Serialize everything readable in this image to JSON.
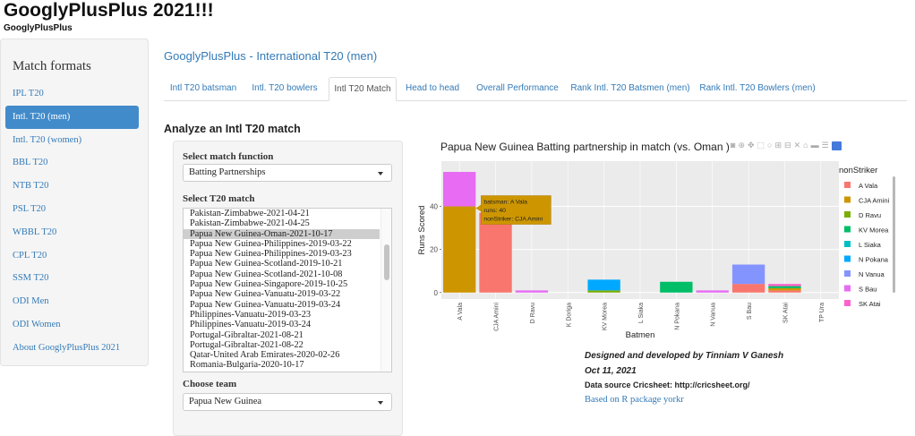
{
  "app": {
    "title": "GooglyPlusPlus 2021!!!",
    "subtitle": "GooglyPlusPlus"
  },
  "sidebar": {
    "heading": "Match formats",
    "items": [
      {
        "label": "IPL T20",
        "active": false
      },
      {
        "label": "Intl. T20 (men)",
        "active": true
      },
      {
        "label": "Intl. T20 (women)",
        "active": false
      },
      {
        "label": "BBL T20",
        "active": false
      },
      {
        "label": "NTB T20",
        "active": false
      },
      {
        "label": "PSL T20",
        "active": false
      },
      {
        "label": "WBBL T20",
        "active": false
      },
      {
        "label": "CPL T20",
        "active": false
      },
      {
        "label": "SSM T20",
        "active": false
      },
      {
        "label": "ODI Men",
        "active": false
      },
      {
        "label": "ODI Women",
        "active": false
      },
      {
        "label": "About GooglyPlusPlus 2021",
        "active": false
      }
    ]
  },
  "main": {
    "title": "GooglyPlusPlus - International T20 (men)",
    "tabs": [
      {
        "label": "Intl T20 batsman",
        "active": false
      },
      {
        "label": "Intl. T20 bowlers",
        "active": false
      },
      {
        "label": "Intl T20 Match",
        "active": true
      },
      {
        "label": "Head to head",
        "active": false
      },
      {
        "label": "Overall Performance",
        "active": false
      },
      {
        "label": "Rank Intl. T20 Batsmen (men)",
        "active": false
      },
      {
        "label": "Rank Intl. T20 Bowlers (men)",
        "active": false
      }
    ],
    "section_title": "Analyze an Intl T20 match"
  },
  "form": {
    "function_label": "Select match function",
    "function_value": "Batting Partnerships",
    "match_label": "Select T20 match",
    "matches": [
      "Pakistan-Zimbabwe-2021-04-21",
      "Pakistan-Zimbabwe-2021-04-25",
      "Papua New Guinea-Oman-2021-10-17",
      "Papua New Guinea-Philippines-2019-03-22",
      "Papua New Guinea-Philippines-2019-03-23",
      "Papua New Guinea-Scotland-2019-10-21",
      "Papua New Guinea-Scotland-2021-10-08",
      "Papua New Guinea-Singapore-2019-10-25",
      "Papua New Guinea-Vanuatu-2019-03-22",
      "Papua New Guinea-Vanuatu-2019-03-24",
      "Philippines-Vanuatu-2019-03-23",
      "Philippines-Vanuatu-2019-03-24",
      "Portugal-Gibraltar-2021-08-21",
      "Portugal-Gibraltar-2021-08-22",
      "Qatar-United Arab Emirates-2020-02-26",
      "Romania-Bulgaria-2020-10-17"
    ],
    "selected_match_index": 2,
    "team_label": "Choose team",
    "team_value": "Papua New Guinea"
  },
  "chart_data": {
    "type": "bar",
    "stacked": true,
    "title": "Papua New Guinea Batting partnership in match (vs. Oman )",
    "xlabel": "Batmen",
    "ylabel": "Runs Scored",
    "ylim": [
      -3,
      61
    ],
    "yticks": [
      0,
      20,
      40
    ],
    "legend_title": "nonStriker",
    "legend_position": "right",
    "categories": [
      "A Vala",
      "CJA Amini",
      "D Ravu",
      "K Doriga",
      "KV Morea",
      "L Siaka",
      "N Pokana",
      "N Vanua",
      "S Bau",
      "SK Atai",
      "TP Ura"
    ],
    "series": [
      {
        "name": "A Vala",
        "color": "#F8766D",
        "values": [
          0,
          37,
          0,
          0,
          0,
          0,
          0,
          0,
          4,
          1,
          0
        ]
      },
      {
        "name": "CJA Amini",
        "color": "#CD9600",
        "values": [
          40,
          0,
          0,
          0,
          0,
          0,
          0,
          0,
          0,
          1,
          0
        ]
      },
      {
        "name": "D Ravu",
        "color": "#7CAE00",
        "values": [
          0,
          0,
          0,
          0,
          1,
          0,
          0,
          0,
          0,
          0,
          0
        ]
      },
      {
        "name": "KV Morea",
        "color": "#00BE67",
        "values": [
          0,
          0,
          0,
          0,
          0,
          0,
          5,
          0,
          0,
          1,
          0
        ]
      },
      {
        "name": "L Siaka",
        "color": "#00BFC4",
        "values": [
          0,
          0,
          0,
          0,
          0,
          0,
          0,
          0,
          0,
          0,
          0
        ]
      },
      {
        "name": "N Pokana",
        "color": "#00A9FF",
        "values": [
          0,
          0,
          0,
          0,
          5,
          0,
          0,
          0,
          0,
          0,
          0
        ]
      },
      {
        "name": "N Vanua",
        "color": "#8494FF",
        "values": [
          0,
          0,
          0,
          0,
          0,
          0,
          0,
          0,
          9,
          0,
          0
        ]
      },
      {
        "name": "S Bau",
        "color": "#E76BF3",
        "values": [
          16,
          0,
          1,
          0,
          0,
          0,
          0,
          1,
          0,
          0,
          0
        ]
      },
      {
        "name": "SK Atai",
        "color": "#FF61CC",
        "values": [
          0,
          0,
          0,
          0,
          0,
          0,
          0,
          0,
          0,
          1,
          0
        ]
      }
    ],
    "tooltip": {
      "category": "A Vala",
      "series": "CJA Amini",
      "lines": [
        "batsman: A Vala",
        "runs: 40",
        "nonStriker: CJA Amini"
      ]
    }
  },
  "credits": {
    "designed": "Designed and developed by Tinniam V Ganesh",
    "date": "Oct 11, 2021",
    "source": "Data source Cricsheet: http://cricsheet.org/",
    "package": "Based on R package yorkr"
  }
}
